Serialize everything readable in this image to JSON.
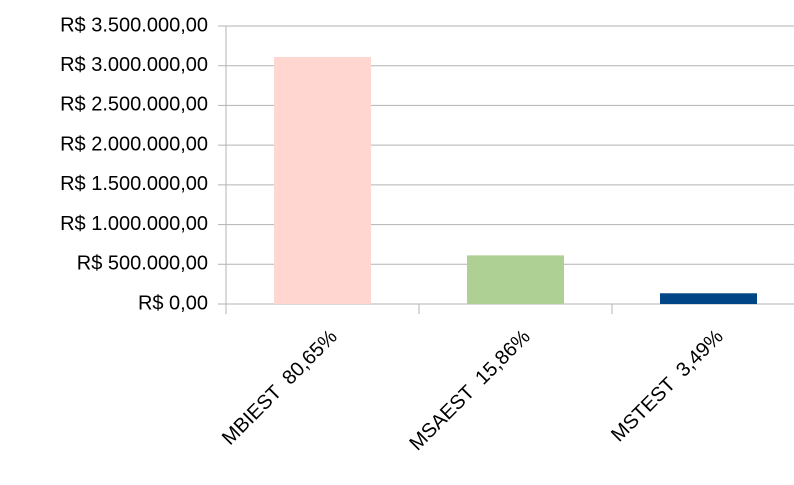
{
  "chart_data": {
    "type": "bar",
    "categories": [
      "MBIEST  80,65%",
      "MSAEST  15,86%",
      "MSTEST  3,49%"
    ],
    "values": [
      3110000,
      612000,
      135000
    ],
    "colors": [
      "#ffd7d0",
      "#afd095",
      "#004586"
    ],
    "ylim": [
      0,
      3500000
    ],
    "yticks": [
      {
        "value": 0,
        "label": "R$ 0,00"
      },
      {
        "value": 500000,
        "label": "R$ 500.000,00"
      },
      {
        "value": 1000000,
        "label": "R$ 1.000.000,00"
      },
      {
        "value": 1500000,
        "label": "R$ 1.500.000,00"
      },
      {
        "value": 2000000,
        "label": "R$ 2.000.000,00"
      },
      {
        "value": 2500000,
        "label": "R$ 2.500.000,00"
      },
      {
        "value": 3000000,
        "label": "R$ 3.000.000,00"
      },
      {
        "value": 3500000,
        "label": "R$ 3.500.000,00"
      }
    ],
    "grid": true
  }
}
